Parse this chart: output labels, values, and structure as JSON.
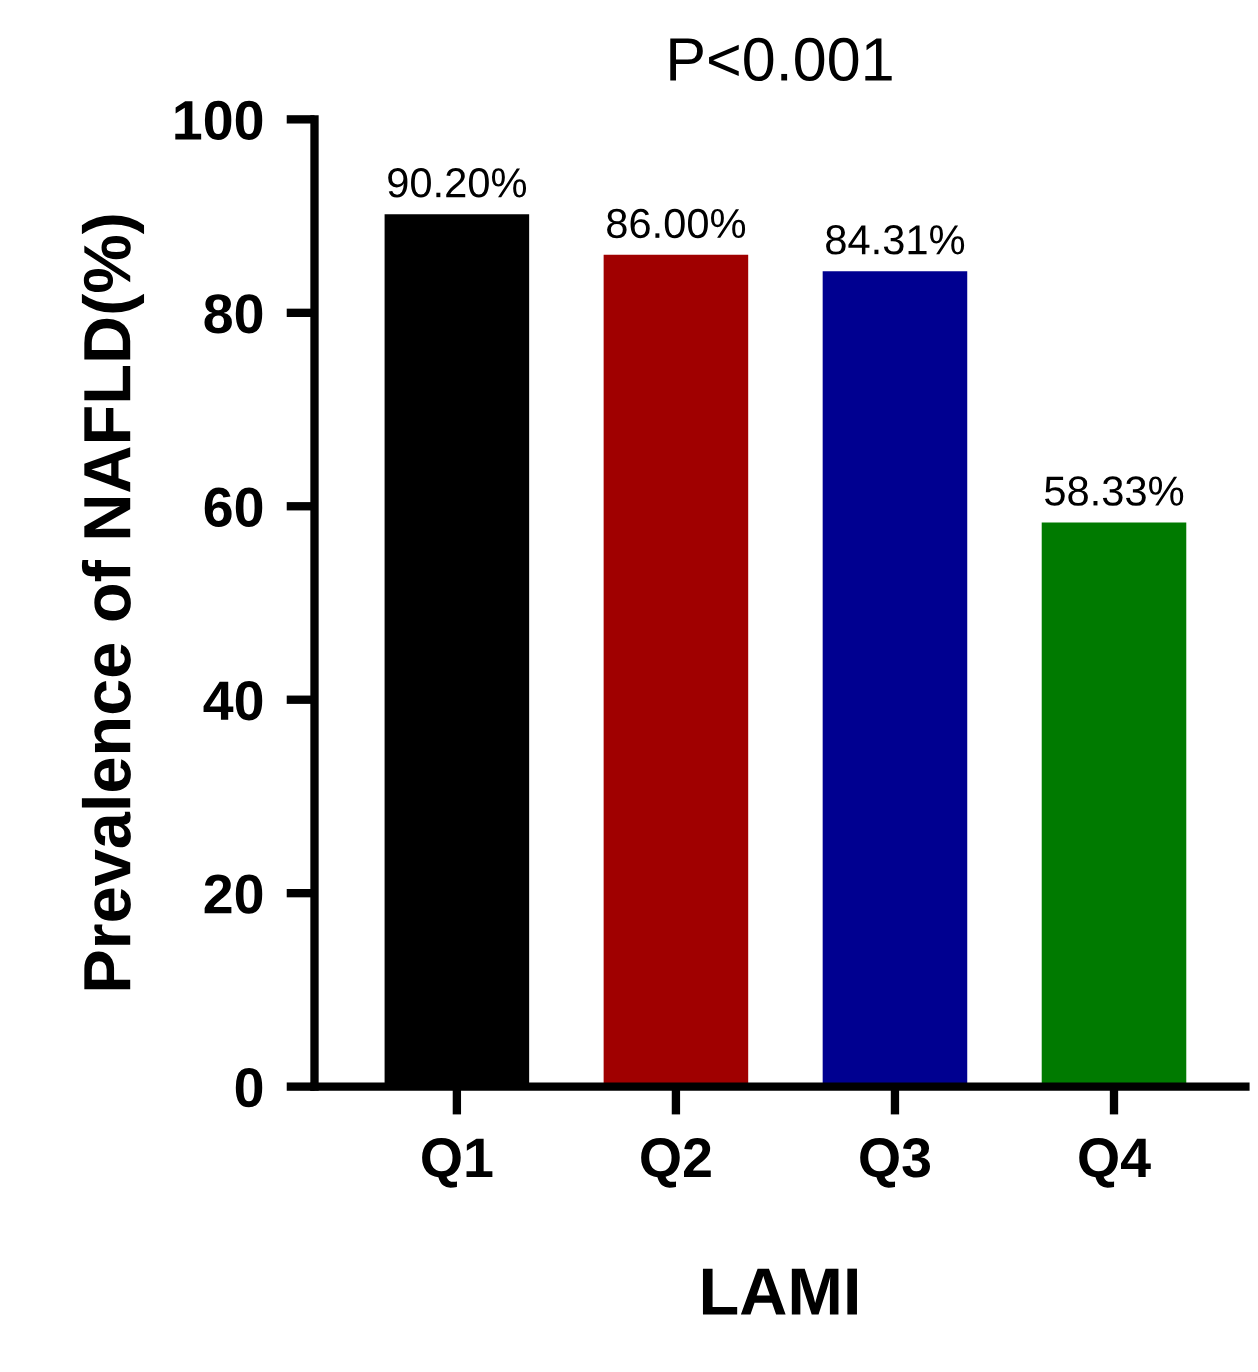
{
  "chart_data": {
    "type": "bar",
    "title": "P<0.001",
    "xlabel": "LAMI",
    "ylabel": "Prevalence of NAFLD(%)",
    "categories": [
      "Q1",
      "Q2",
      "Q3",
      "Q4"
    ],
    "values": [
      90.2,
      86.0,
      84.31,
      58.33
    ],
    "colors": [
      "#000000",
      "#a00000",
      "#000090",
      "#007a00"
    ],
    "value_labels": [
      "90.20%",
      "86.00%",
      "84.31%",
      "58.33%"
    ],
    "ylim": [
      0,
      100
    ],
    "yticks": [
      0,
      20,
      40,
      60,
      80,
      100
    ],
    "grid": false,
    "legend": false
  }
}
